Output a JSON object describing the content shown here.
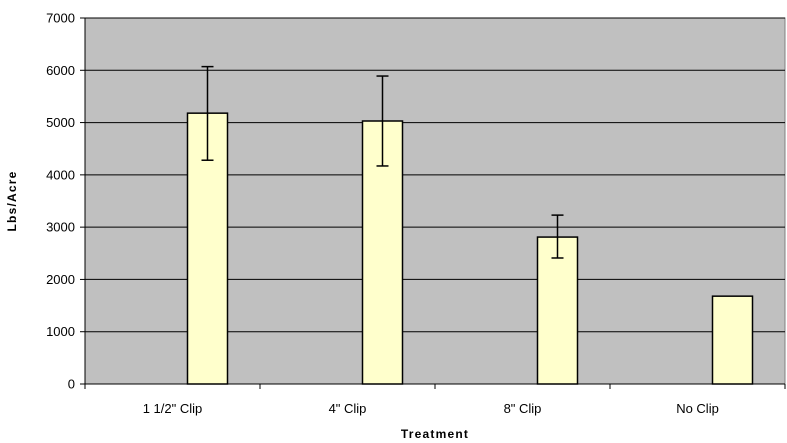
{
  "chart_data": {
    "type": "bar",
    "categories": [
      "1 1/2\" Clip",
      "4\" Clip",
      "8\" Clip",
      "No Clip"
    ],
    "values": [
      5180,
      5030,
      2810,
      1680
    ],
    "error_bars": {
      "upper": [
        6070,
        5890,
        3230,
        null
      ],
      "lower": [
        4280,
        4170,
        2410,
        null
      ]
    },
    "title": "",
    "xlabel": "Treatment",
    "ylabel": "Lbs/Acre",
    "ylim": [
      0,
      7000
    ],
    "yticks": [
      0,
      1000,
      2000,
      3000,
      4000,
      5000,
      6000,
      7000
    ],
    "grid": true,
    "legend": "none",
    "colors": {
      "bar_fill": "#FFFFCC",
      "bar_stroke": "#000000",
      "plot_background": "#C0C0C0",
      "gridline": "#000000"
    }
  }
}
